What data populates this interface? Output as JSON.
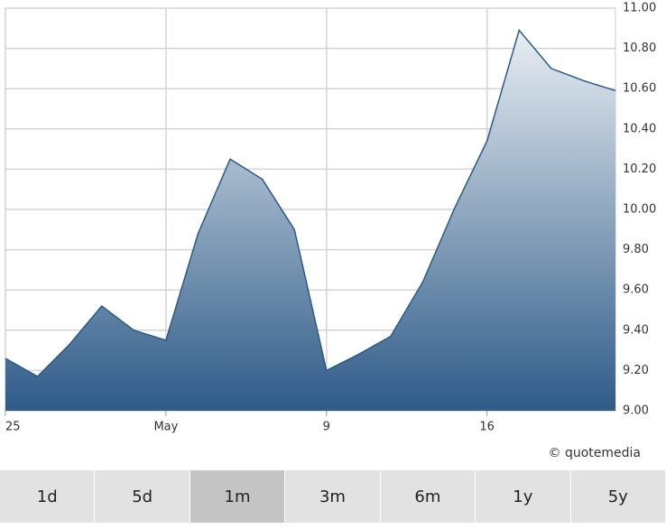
{
  "chart_data": {
    "type": "area",
    "categories": [
      "25",
      null,
      null,
      null,
      null,
      "May",
      null,
      null,
      null,
      null,
      "9",
      null,
      null,
      null,
      null,
      "16",
      null,
      null,
      null,
      null
    ],
    "series": [
      {
        "color": "#2b5a86",
        "values": [
          9.26,
          9.17,
          9.33,
          9.52,
          9.4,
          9.35,
          9.88,
          10.25,
          10.15,
          9.9,
          9.2,
          9.28,
          9.37,
          9.64,
          10.01,
          10.34,
          10.89,
          10.7,
          10.64,
          10.59
        ]
      }
    ],
    "ylim": [
      9,
      11
    ],
    "yticks": [
      {
        "value": 9,
        "label": "9.00"
      },
      {
        "value": 9.2,
        "label": "9.20"
      },
      {
        "value": 9.4,
        "label": "9.40"
      },
      {
        "value": 9.6,
        "label": "9.60"
      },
      {
        "value": 9.8,
        "label": "9.80"
      },
      {
        "value": 10,
        "label": "10.00"
      },
      {
        "value": 10.2,
        "label": "10.20"
      },
      {
        "value": 10.4,
        "label": "10.40"
      },
      {
        "value": 10.6,
        "label": "10.60"
      },
      {
        "value": 10.8,
        "label": "10.80"
      },
      {
        "value": 11,
        "label": "11.00"
      }
    ],
    "grid": true,
    "credit": "© quotemedia"
  },
  "range_buttons": {
    "labels": [
      "1d",
      "5d",
      "1m",
      "3m",
      "6m",
      "1y",
      "5y"
    ],
    "active_index": 2
  }
}
